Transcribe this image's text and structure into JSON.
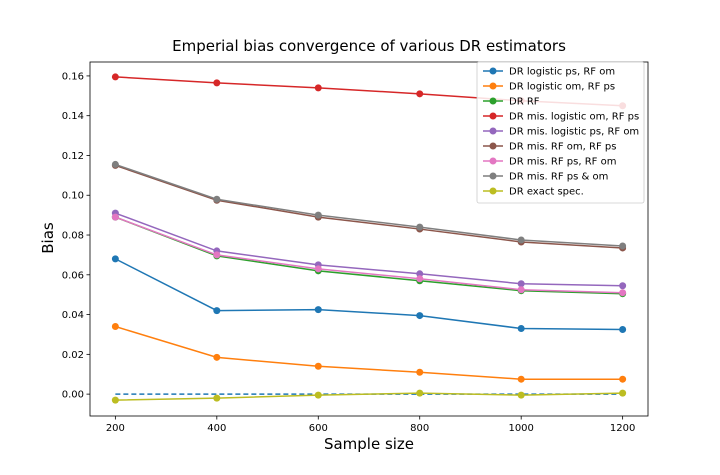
{
  "chart_data": {
    "type": "line",
    "title": "Emperial bias convergence of various DR estimators",
    "xlabel": "Sample size",
    "ylabel": "Bias",
    "x": [
      200,
      400,
      600,
      800,
      1000,
      1200
    ],
    "xlim": [
      150,
      1250
    ],
    "ylim": [
      -0.011,
      0.167
    ],
    "xticks": [
      200,
      400,
      600,
      800,
      1000,
      1200
    ],
    "yticks": [
      0.0,
      0.02,
      0.04,
      0.06,
      0.08,
      0.1,
      0.12,
      0.14,
      0.16
    ],
    "ytick_labels": [
      "0.00",
      "0.02",
      "0.04",
      "0.06",
      "0.08",
      "0.10",
      "0.12",
      "0.14",
      "0.16"
    ],
    "grid": false,
    "legend_position": "top-right",
    "reference_line": {
      "y": 0.0,
      "style": "dashed",
      "color": "#1f77b4"
    },
    "series": [
      {
        "name": "DR logistic ps, RF om",
        "color": "#1f77b4",
        "values": [
          0.068,
          0.042,
          0.0425,
          0.0395,
          0.033,
          0.0325
        ]
      },
      {
        "name": "DR logistic om, RF ps",
        "color": "#ff7f0e",
        "values": [
          0.034,
          0.0185,
          0.014,
          0.011,
          0.0075,
          0.0075
        ]
      },
      {
        "name": "DR RF",
        "color": "#2ca02c",
        "values": [
          0.089,
          0.0695,
          0.062,
          0.057,
          0.052,
          0.0505
        ]
      },
      {
        "name": "DR mis. logistic om, RF ps",
        "color": "#d62728",
        "values": [
          0.1595,
          0.1565,
          0.154,
          0.151,
          0.1475,
          0.145
        ]
      },
      {
        "name": "DR mis. logistic ps, RF om",
        "color": "#9467bd",
        "values": [
          0.091,
          0.072,
          0.065,
          0.0605,
          0.0555,
          0.0545
        ]
      },
      {
        "name": "DR mis. RF om, RF ps",
        "color": "#8c564b",
        "values": [
          0.115,
          0.0975,
          0.089,
          0.083,
          0.0765,
          0.0735
        ]
      },
      {
        "name": "DR mis. RF ps, RF om",
        "color": "#e377c2",
        "values": [
          0.089,
          0.07,
          0.063,
          0.058,
          0.0525,
          0.051
        ]
      },
      {
        "name": "DR mis. RF ps & om",
        "color": "#7f7f7f",
        "values": [
          0.1155,
          0.098,
          0.09,
          0.084,
          0.0775,
          0.0745
        ]
      },
      {
        "name": "DR exact spec.",
        "color": "#bcbd22",
        "values": [
          -0.003,
          -0.002,
          -0.0005,
          0.0005,
          -0.0005,
          0.0005
        ]
      }
    ]
  }
}
